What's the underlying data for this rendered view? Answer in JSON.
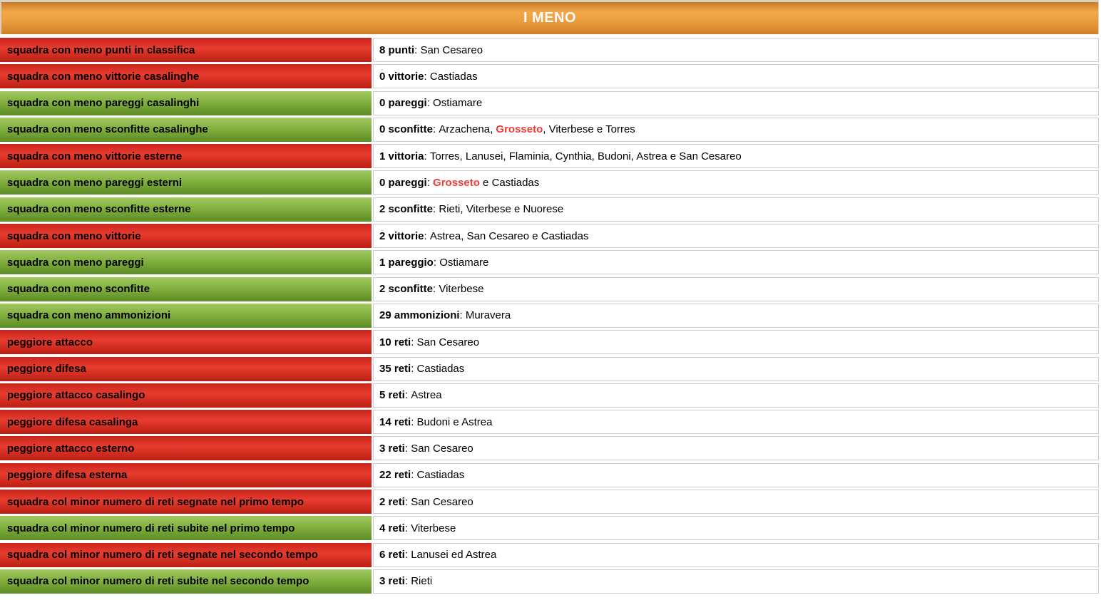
{
  "header": {
    "title": "I MENO"
  },
  "ui": {
    "separator": ": "
  },
  "colors": {
    "orange_top": "#c87a25",
    "orange_mid": "#f2a748",
    "orange_bottom": "#cd8028",
    "red_top": "#c9251c",
    "red_mid": "#e83c2f",
    "red_bottom": "#ba1f12",
    "green_top": "#a2c75f",
    "green_mid": "#7fae3c",
    "green_bottom": "#5d8b26",
    "highlight": "#ee3b37",
    "border_gray": "#cccccc",
    "frame_beige": "#d9d0c2"
  },
  "rows": [
    {
      "color": "red",
      "label": "squadra con meno punti in classifica",
      "stat": "8 punti",
      "value": [
        {
          "t": "San Cesareo"
        }
      ]
    },
    {
      "color": "red",
      "label": "squadra con meno vittorie casalinghe",
      "stat": "0 vittorie",
      "value": [
        {
          "t": "Castiadas"
        }
      ]
    },
    {
      "color": "green",
      "label": "squadra con meno pareggi casalinghi",
      "stat": "0 pareggi",
      "value": [
        {
          "t": "Ostiamare"
        }
      ]
    },
    {
      "color": "green",
      "label": "squadra con meno sconfitte casalinghe",
      "stat": "0 sconfitte",
      "value": [
        {
          "t": "Arzachena, "
        },
        {
          "t": "Grosseto",
          "hl": true
        },
        {
          "t": ", Viterbese e Torres"
        }
      ]
    },
    {
      "color": "red",
      "label": "squadra con meno vittorie esterne",
      "stat": "1 vittoria",
      "value": [
        {
          "t": "Torres, Lanusei, Flaminia, Cynthia, Budoni, Astrea e San Cesareo"
        }
      ]
    },
    {
      "color": "green",
      "label": "squadra con meno pareggi esterni",
      "stat": "0 pareggi",
      "value": [
        {
          "t": "Grosseto",
          "hl": true
        },
        {
          "t": " e Castiadas"
        }
      ]
    },
    {
      "color": "green",
      "label": "squadra con meno sconfitte esterne",
      "stat": "2 sconfitte",
      "value": [
        {
          "t": "Rieti, Viterbese e Nuorese"
        }
      ]
    },
    {
      "color": "red",
      "label": "squadra con meno vittorie",
      "stat": "2 vittorie",
      "value": [
        {
          "t": "Astrea, San Cesareo e Castiadas"
        }
      ]
    },
    {
      "color": "green",
      "label": "squadra con meno pareggi",
      "stat": "1 pareggio",
      "value": [
        {
          "t": "Ostiamare"
        }
      ]
    },
    {
      "color": "green",
      "label": "squadra con meno sconfitte",
      "stat": "2 sconfitte",
      "value": [
        {
          "t": "Viterbese"
        }
      ]
    },
    {
      "color": "green",
      "label": "squadra con meno ammonizioni",
      "stat": "29 ammonizioni",
      "value": [
        {
          "t": "Muravera"
        }
      ]
    },
    {
      "color": "red",
      "label": "peggiore attacco",
      "stat": "10 reti",
      "value": [
        {
          "t": "San Cesareo"
        }
      ]
    },
    {
      "color": "red",
      "label": "peggiore difesa",
      "stat": "35 reti",
      "value": [
        {
          "t": "Castiadas"
        }
      ]
    },
    {
      "color": "red",
      "label": "peggiore attacco casalingo",
      "stat": "5 reti",
      "value": [
        {
          "t": "Astrea"
        }
      ]
    },
    {
      "color": "red",
      "label": "peggiore difesa casalinga",
      "stat": "14 reti",
      "value": [
        {
          "t": "Budoni e Astrea"
        }
      ]
    },
    {
      "color": "red",
      "label": "peggiore attacco esterno",
      "stat": "3 reti",
      "value": [
        {
          "t": "San Cesareo"
        }
      ]
    },
    {
      "color": "red",
      "label": "peggiore difesa esterna",
      "stat": "22 reti",
      "value": [
        {
          "t": "Castiadas"
        }
      ]
    },
    {
      "color": "red",
      "label": "squadra col minor numero di reti segnate nel primo tempo",
      "stat": "2 reti",
      "value": [
        {
          "t": "San Cesareo"
        }
      ]
    },
    {
      "color": "green",
      "label": "squadra col minor numero di reti subite nel primo tempo",
      "stat": "4 reti",
      "value": [
        {
          "t": "Viterbese"
        }
      ]
    },
    {
      "color": "red",
      "label": "squadra col minor numero di reti segnate nel secondo tempo",
      "stat": "6 reti",
      "value": [
        {
          "t": "Lanusei ed Astrea"
        }
      ]
    },
    {
      "color": "green",
      "label": "squadra col minor numero di reti subite nel secondo tempo",
      "stat": "3 reti",
      "value": [
        {
          "t": "Rieti"
        }
      ]
    }
  ]
}
